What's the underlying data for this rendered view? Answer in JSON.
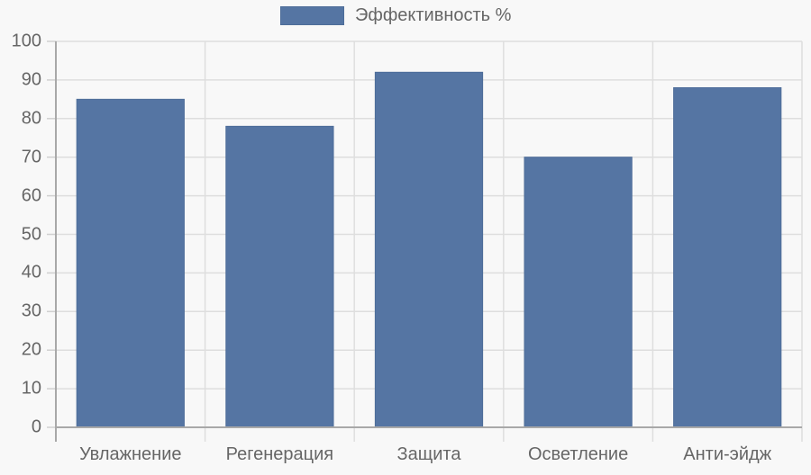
{
  "chart_data": {
    "type": "bar",
    "title": "",
    "xlabel": "",
    "ylabel": "",
    "categories": [
      "Увлажнение",
      "Регенерация",
      "Защита",
      "Осветление",
      "Анти-эйдж"
    ],
    "series": [
      {
        "name": "Эффективность %",
        "values": [
          85,
          78,
          92,
          70,
          88
        ],
        "color": "#5575a3"
      }
    ],
    "ylim": [
      0,
      100
    ],
    "yticks": [
      0,
      10,
      20,
      30,
      40,
      50,
      60,
      70,
      80,
      90,
      100
    ],
    "grid": true,
    "legend_position": "top"
  },
  "legend": {
    "label": "Эффективность %"
  },
  "yaxis": {
    "ticks": [
      "100",
      "90",
      "80",
      "70",
      "60",
      "50",
      "40",
      "30",
      "20",
      "10",
      "0"
    ]
  },
  "xaxis": {
    "labels": [
      "Увлажнение",
      "Регенерация",
      "Защита",
      "Осветление",
      "Анти-эйдж"
    ]
  }
}
